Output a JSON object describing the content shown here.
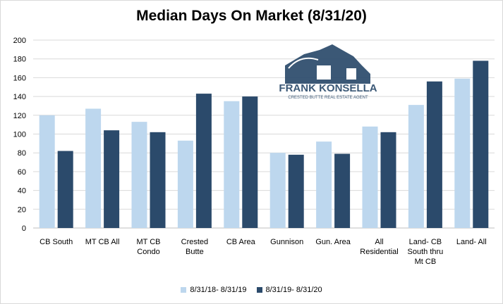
{
  "chart_data": {
    "type": "bar",
    "title": "Median Days On Market (8/31/20)",
    "categories": [
      [
        "CB South"
      ],
      [
        "MT CB All"
      ],
      [
        "MT CB",
        "Condo"
      ],
      [
        "Crested",
        "Butte"
      ],
      [
        "CB Area"
      ],
      [
        "Gunnison"
      ],
      [
        "Gun. Area"
      ],
      [
        "All",
        "Residential"
      ],
      [
        "Land- CB",
        "South thru",
        "Mt CB"
      ],
      [
        "Land- All"
      ]
    ],
    "series": [
      {
        "name": "8/31/18- 8/31/19",
        "color": "#bdd7ee",
        "values": [
          120,
          127,
          113,
          93,
          135,
          80,
          92,
          108,
          131,
          159
        ]
      },
      {
        "name": "8/31/19- 8/31/20",
        "color": "#2b4a6b",
        "values": [
          82,
          104,
          102,
          143,
          140,
          78,
          79,
          102,
          156,
          178
        ]
      }
    ],
    "ylim": [
      0,
      200
    ],
    "yticks": [
      0,
      20,
      40,
      60,
      80,
      100,
      120,
      140,
      160,
      180,
      200
    ],
    "grid": true,
    "legend_position": "bottom",
    "watermark": {
      "brand": "FRANK KONSELLA",
      "tagline": "CRESTED BUTTE REAL ESTATE AGENT",
      "color": "#2b4a6b"
    }
  }
}
